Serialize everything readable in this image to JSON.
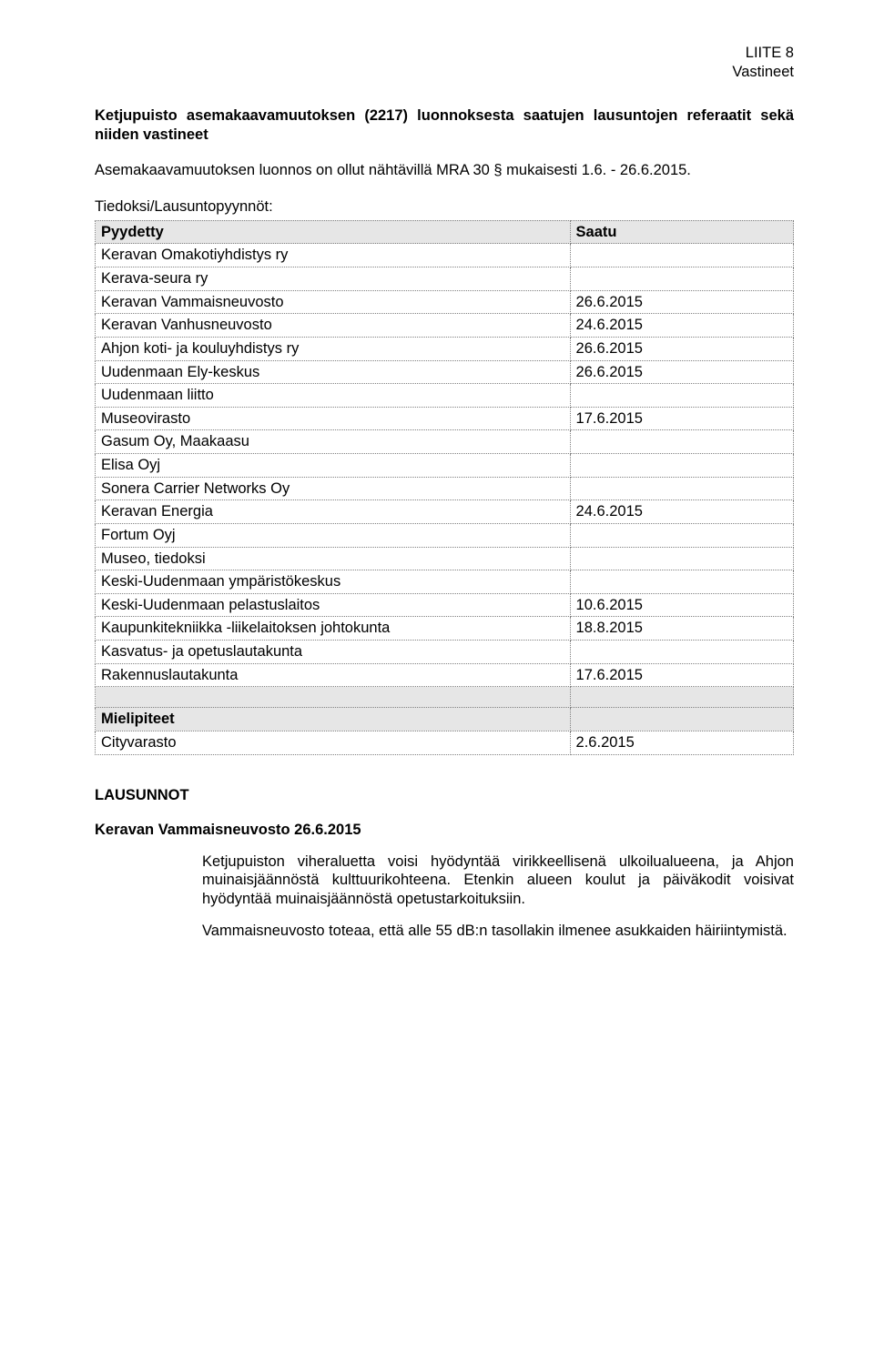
{
  "header": {
    "line1": "LIITE 8",
    "line2": "Vastineet"
  },
  "title": "Ketjupuisto asemakaavamuutoksen (2217) luonnoksesta saatujen lausuntojen referaatit sekä niiden vastineet",
  "subtitle": "Asemakaavamuutoksen luonnos on ollut nähtävillä MRA 30 § mukaisesti 1.6. - 26.6.2015.",
  "tableHeading": "Tiedoksi/Lausuntopyynnöt:",
  "colors": {
    "headerShade": "#e6e6e6",
    "border": "#808080",
    "text": "#000000",
    "background": "#ffffff"
  },
  "table": {
    "columns": [
      "Pyydetty",
      "Saatu"
    ],
    "rows": [
      {
        "label": "Keravan Omakotiyhdistys ry",
        "value": ""
      },
      {
        "label": "Kerava-seura ry",
        "value": ""
      },
      {
        "label": "Keravan Vammaisneuvosto",
        "value": "26.6.2015"
      },
      {
        "label": "Keravan Vanhusneuvosto",
        "value": "24.6.2015"
      },
      {
        "label": "Ahjon koti- ja kouluyhdistys ry",
        "value": "26.6.2015"
      },
      {
        "label": "Uudenmaan Ely-keskus",
        "value": "26.6.2015"
      },
      {
        "label": "Uudenmaan liitto",
        "value": ""
      },
      {
        "label": "Museovirasto",
        "value": "17.6.2015"
      },
      {
        "label": "Gasum Oy, Maakaasu",
        "value": ""
      },
      {
        "label": "Elisa Oyj",
        "value": ""
      },
      {
        "label": "Sonera Carrier Networks Oy",
        "value": ""
      },
      {
        "label": "Keravan Energia",
        "value": "24.6.2015"
      },
      {
        "label": "Fortum Oyj",
        "value": ""
      },
      {
        "label": "Museo, tiedoksi",
        "value": ""
      },
      {
        "label": "Keski-Uudenmaan ympäristökeskus",
        "value": ""
      },
      {
        "label": "Keski-Uudenmaan pelastuslaitos",
        "value": "10.6.2015"
      },
      {
        "label": "Kaupunkitekniikka -liikelaitoksen johtokunta",
        "value": "18.8.2015"
      },
      {
        "label": "Kasvatus- ja opetuslautakunta",
        "value": ""
      },
      {
        "label": "Rakennuslautakunta",
        "value": "17.6.2015"
      }
    ],
    "opinionsHeader": "Mielipiteet",
    "opinions": [
      {
        "label": "Cityvarasto",
        "value": "2.6.2015"
      }
    ]
  },
  "lausunnotHead": "LAUSUNNOT",
  "statement": {
    "heading": "Keravan Vammaisneuvosto 26.6.2015",
    "para1": "Ketjupuiston viheraluetta voisi hyödyntää virikkeellisenä ulkoilualueena, ja Ahjon muinaisjäännöstä kulttuurikohteena. Etenkin alueen koulut ja päiväkodit voisivat hyödyntää muinaisjäännöstä opetustarkoituksiin.",
    "para2": "Vammaisneuvosto toteaa, että alle 55 dB:n tasollakin ilmenee asukkaiden häiriintymistä."
  }
}
